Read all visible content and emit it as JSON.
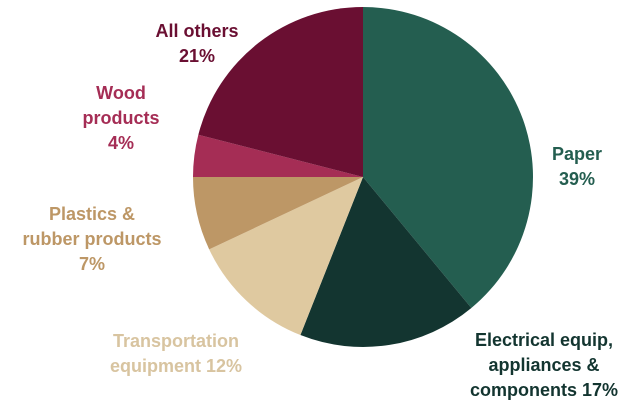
{
  "chart_data": {
    "type": "pie",
    "title": "",
    "start_angle_deg": 0,
    "direction": "clockwise",
    "slices": [
      {
        "label_lines": [
          "Paper",
          "39%"
        ],
        "category": "Paper",
        "value": 39,
        "color": "#245e50"
      },
      {
        "label_lines": [
          "Electrical equip,",
          "appliances &",
          "components 17%"
        ],
        "category": "Electrical equip, appliances & components",
        "value": 17,
        "color": "#133530"
      },
      {
        "label_lines": [
          "Transportation",
          "equipment 12%"
        ],
        "category": "Transportation equipment",
        "value": 12,
        "color": "#dfc9a0"
      },
      {
        "label_lines": [
          "Plastics &",
          "rubber products",
          "7%"
        ],
        "category": "Plastics & rubber products",
        "value": 7,
        "color": "#bd9766"
      },
      {
        "label_lines": [
          "Wood",
          "products",
          "4%"
        ],
        "category": "Wood products",
        "value": 4,
        "color": "#a52d55"
      },
      {
        "label_lines": [
          "All others",
          "21%"
        ],
        "category": "All others",
        "value": 21,
        "color": "#6a0f32"
      }
    ],
    "label_colors": [
      "#245e50",
      "#133530",
      "#d8c4a0",
      "#bd9766",
      "#a52d55",
      "#6a0f32"
    ]
  }
}
